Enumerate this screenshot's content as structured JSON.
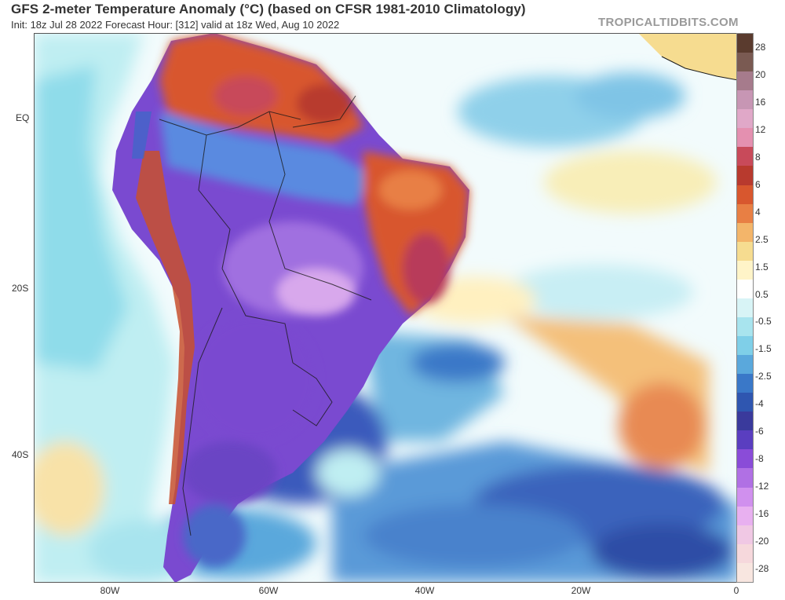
{
  "header": {
    "title": "GFS 2-meter Temperature Anomaly (°C) (based on CFSR 1981-2010 Climatology)",
    "subtitle": "Init: 18z Jul 28 2022   Forecast Hour: [312]   valid at 18z Wed, Aug 10 2022",
    "credit": "TROPICALTIDBITS.COM"
  },
  "map": {
    "lat_labels": [
      "EQ",
      "20S",
      "40S"
    ],
    "lon_labels": [
      "80W",
      "60W",
      "40W",
      "20W",
      "0"
    ]
  },
  "colorbar": {
    "labels": [
      "28",
      "20",
      "16",
      "12",
      "8",
      "6",
      "4",
      "2.5",
      "1.5",
      "0.5",
      "-0.5",
      "-1.5",
      "-2.5",
      "-4",
      "-6",
      "-8",
      "-12",
      "-16",
      "-20",
      "-28"
    ],
    "colors": [
      "#5a3b2e",
      "#7a5a52",
      "#a67b8c",
      "#c796b4",
      "#e0a8c8",
      "#e490b0",
      "#c84a5a",
      "#b83a2e",
      "#d8572e",
      "#e87f44",
      "#f3b56a",
      "#f6dc90",
      "#fff4c8",
      "#ffffff",
      "#d8f4f6",
      "#a8e4ee",
      "#7fcfe8",
      "#5aa8dc",
      "#3a78c8",
      "#2f56b0",
      "#3a3a9c",
      "#5a3ec0",
      "#8a4cd8",
      "#b070e4",
      "#d090ee",
      "#e8b0f0",
      "#f0c8e4",
      "#f6d8dc",
      "#f8e6e0"
    ]
  }
}
